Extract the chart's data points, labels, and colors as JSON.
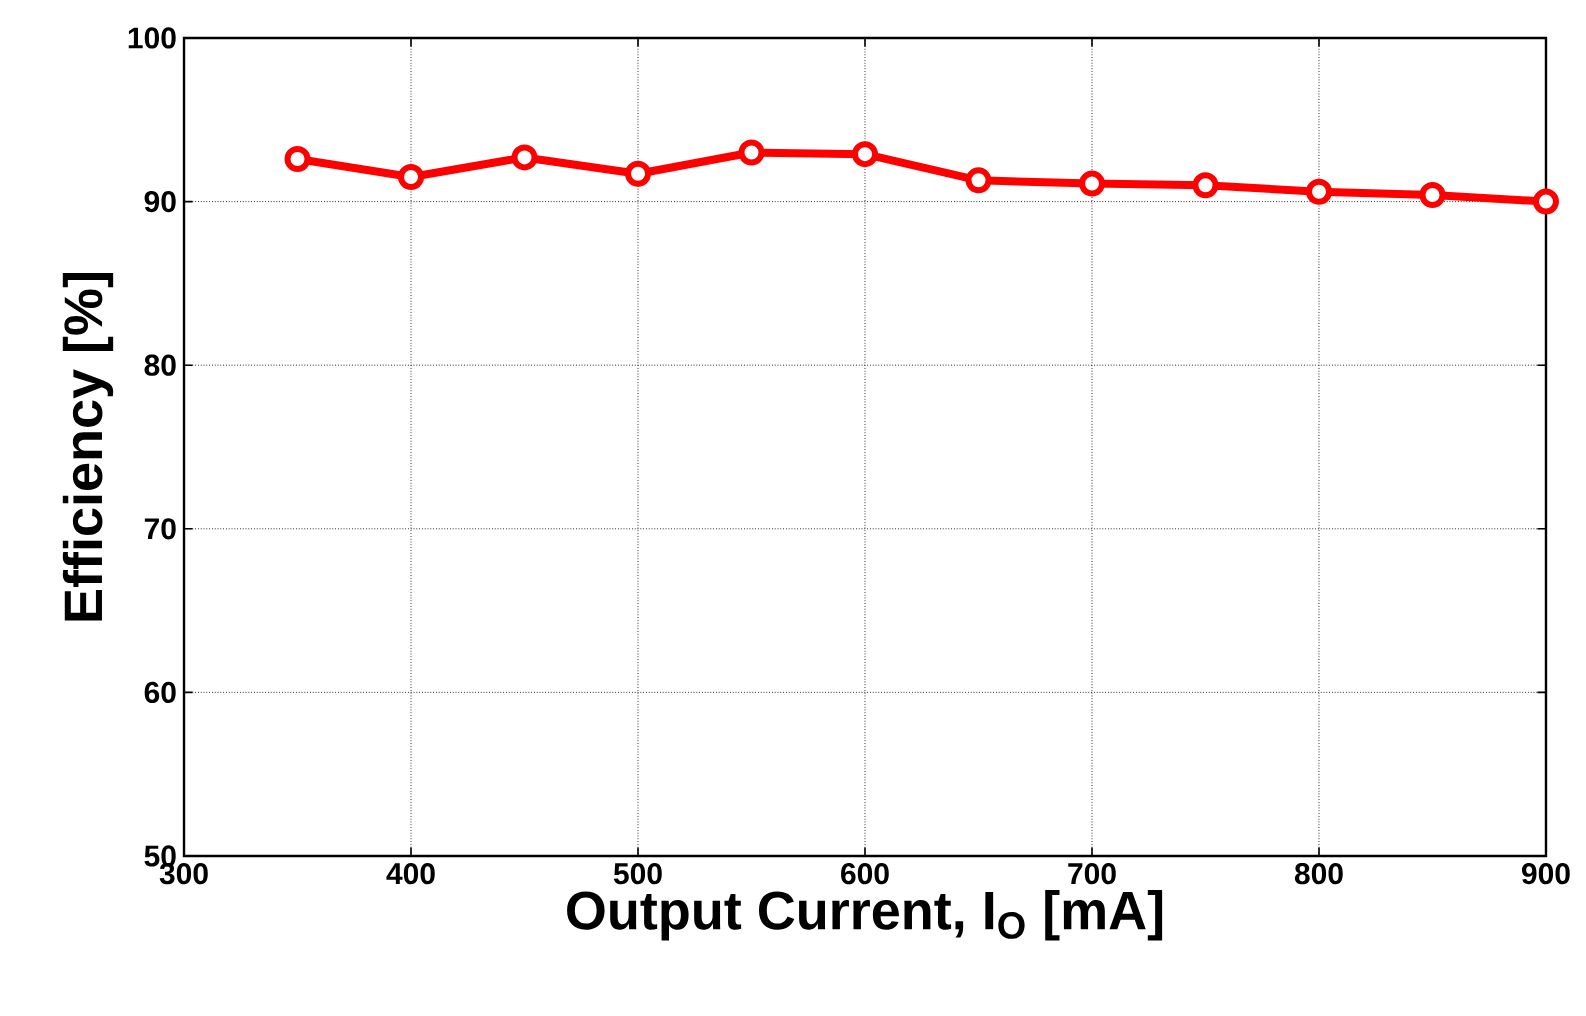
{
  "chart_data": {
    "type": "line",
    "xlabel": "Output Current, I$_{O}$ [mA]",
    "ylabel": "Efficiency [%]",
    "x": [
      350,
      400,
      450,
      500,
      550,
      600,
      650,
      700,
      750,
      800,
      850,
      900
    ],
    "series": [
      {
        "color": "#ff0000",
        "values": [
          92.6,
          91.5,
          92.7,
          91.7,
          93.0,
          92.9,
          91.3,
          91.1,
          91.0,
          90.6,
          90.4,
          90.0
        ]
      }
    ],
    "xlim": [
      300,
      900
    ],
    "xticks": [
      300,
      400,
      500,
      600,
      700,
      800,
      900
    ],
    "ylim": [
      50,
      100
    ],
    "yticks": [
      50,
      60,
      70,
      80,
      90,
      100
    ],
    "grid": true,
    "marker": "circle",
    "line_style": "solid"
  }
}
